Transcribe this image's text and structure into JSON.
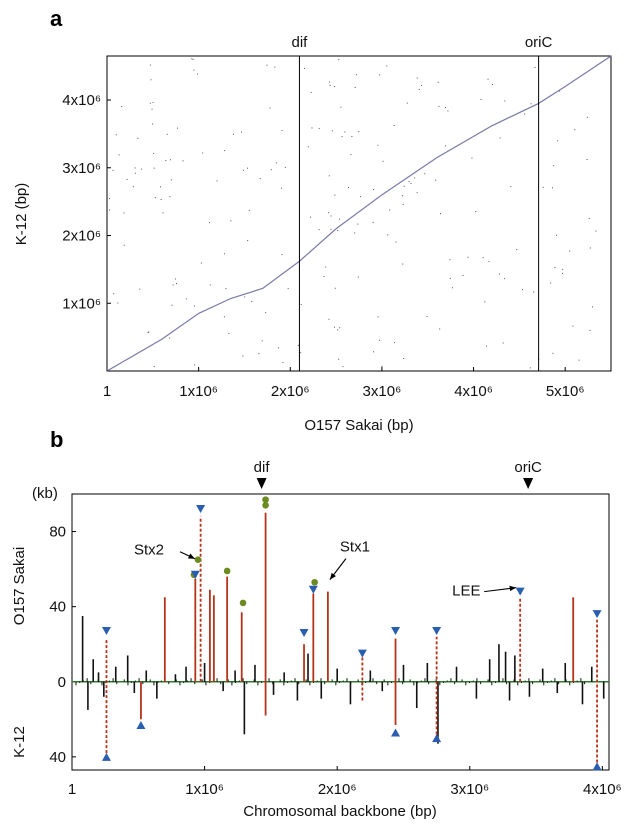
{
  "chart_data": [
    {
      "panel": "a",
      "type": "scatter",
      "xlabel": "O157 Sakai (bp)",
      "ylabel": "K-12 (bp)",
      "xlim": [
        0,
        5500000
      ],
      "ylim": [
        0,
        4650000
      ],
      "x_ticks": [
        {
          "value": 0,
          "label": "1"
        },
        {
          "value": 1000000,
          "label": "1x10⁶"
        },
        {
          "value": 2000000,
          "label": "2x10⁶"
        },
        {
          "value": 3000000,
          "label": "3x10⁶"
        },
        {
          "value": 4000000,
          "label": "4x10⁶"
        },
        {
          "value": 5000000,
          "label": "5x10⁶"
        }
      ],
      "y_ticks": [
        {
          "value": 1000000,
          "label": "1x10⁶"
        },
        {
          "value": 2000000,
          "label": "2x10⁶"
        },
        {
          "value": 3000000,
          "label": "3x10⁶"
        },
        {
          "value": 4000000,
          "label": "4x10⁶"
        }
      ],
      "markers": [
        {
          "label": "dif",
          "x": 2100000
        },
        {
          "label": "oriC",
          "x": 4710000
        }
      ],
      "diagonal": [
        [
          0,
          0
        ],
        [
          600000,
          470000
        ],
        [
          1000000,
          850000
        ],
        [
          1350000,
          1070000
        ],
        [
          1700000,
          1220000
        ],
        [
          2100000,
          1620000
        ],
        [
          2500000,
          2100000
        ],
        [
          3000000,
          2600000
        ],
        [
          3600000,
          3150000
        ],
        [
          4200000,
          3620000
        ],
        [
          4710000,
          3950000
        ],
        [
          5000000,
          4200000
        ],
        [
          5500000,
          4650000
        ]
      ],
      "grid": false,
      "color": "#7a7aa8"
    },
    {
      "panel": "b",
      "type": "bar",
      "xlabel": "Chromosomal backbone (bp)",
      "ylabel_top": "O157 Sakai",
      "ylabel_bottom": "K-12",
      "y_unit": "(kb)",
      "xlim": [
        0,
        4050000
      ],
      "ylim": [
        -47,
        100
      ],
      "x_ticks": [
        {
          "value": 0,
          "label": "1"
        },
        {
          "value": 1000000,
          "label": "1x10⁶"
        },
        {
          "value": 2000000,
          "label": "2x10⁶"
        },
        {
          "value": 3000000,
          "label": "3x10⁶"
        },
        {
          "value": 4000000,
          "label": "4x10⁶"
        }
      ],
      "y_ticks_top": [
        {
          "value": 40,
          "label": "40"
        },
        {
          "value": 80,
          "label": "80"
        }
      ],
      "y_ticks_bottom": [
        {
          "value": -40,
          "label": "40"
        }
      ],
      "zero_label": "0",
      "markers": [
        {
          "label": "dif",
          "x": 1430000
        },
        {
          "label": "oriC",
          "x": 3440000
        }
      ],
      "red_bars": [
        {
          "x": 700000,
          "top": 45,
          "bottom": 0
        },
        {
          "x": 930000,
          "top": 55,
          "bottom": 0
        },
        {
          "x": 1040000,
          "top": 49,
          "bottom": 0
        },
        {
          "x": 1070000,
          "top": 46,
          "bottom": 0
        },
        {
          "x": 1170000,
          "top": 56,
          "bottom": 0
        },
        {
          "x": 1280000,
          "top": 37,
          "bottom": 0
        },
        {
          "x": 1460000,
          "top": 90,
          "bottom": -18
        },
        {
          "x": 1750000,
          "top": 20,
          "bottom": 0
        },
        {
          "x": 1820000,
          "top": 47,
          "bottom": 0
        },
        {
          "x": 1930000,
          "top": 48,
          "bottom": 0
        },
        {
          "x": 2440000,
          "top": 23,
          "bottom": -23
        },
        {
          "x": 3780000,
          "top": 45,
          "bottom": 0
        },
        {
          "x": 520000,
          "top": 0,
          "bottom": -20
        }
      ],
      "red_dashed": [
        {
          "x": 260000,
          "top": 23,
          "bottom": -38
        },
        {
          "x": 970000,
          "top": 88,
          "bottom": 0
        },
        {
          "x": 2190000,
          "top": 13,
          "bottom": -10
        },
        {
          "x": 2750000,
          "top": 24,
          "bottom": -28
        },
        {
          "x": 3380000,
          "top": 45,
          "bottom": 0
        },
        {
          "x": 3960000,
          "top": 33,
          "bottom": -43
        }
      ],
      "black_bars": [
        {
          "x": 80000,
          "v": 35
        },
        {
          "x": 120000,
          "v": -15
        },
        {
          "x": 160000,
          "v": 12
        },
        {
          "x": 200000,
          "v": 5
        },
        {
          "x": 240000,
          "v": -8
        },
        {
          "x": 330000,
          "v": 8
        },
        {
          "x": 420000,
          "v": 14
        },
        {
          "x": 470000,
          "v": -6
        },
        {
          "x": 560000,
          "v": 6
        },
        {
          "x": 640000,
          "v": -9
        },
        {
          "x": 780000,
          "v": 4
        },
        {
          "x": 860000,
          "v": 8
        },
        {
          "x": 1000000,
          "v": 10
        },
        {
          "x": 1140000,
          "v": -5
        },
        {
          "x": 1230000,
          "v": 6
        },
        {
          "x": 1300000,
          "v": -28
        },
        {
          "x": 1380000,
          "v": 9
        },
        {
          "x": 1520000,
          "v": -7
        },
        {
          "x": 1600000,
          "v": 5
        },
        {
          "x": 1700000,
          "v": -10
        },
        {
          "x": 1780000,
          "v": 15
        },
        {
          "x": 1880000,
          "v": -9
        },
        {
          "x": 2000000,
          "v": 7
        },
        {
          "x": 2100000,
          "v": -12
        },
        {
          "x": 2250000,
          "v": 6
        },
        {
          "x": 2340000,
          "v": -5
        },
        {
          "x": 2500000,
          "v": 9
        },
        {
          "x": 2600000,
          "v": -14
        },
        {
          "x": 2680000,
          "v": 10
        },
        {
          "x": 2760000,
          "v": -33
        },
        {
          "x": 2900000,
          "v": 8
        },
        {
          "x": 3050000,
          "v": -9
        },
        {
          "x": 3150000,
          "v": 12
        },
        {
          "x": 3220000,
          "v": 20
        },
        {
          "x": 3270000,
          "v": 16
        },
        {
          "x": 3300000,
          "v": -10
        },
        {
          "x": 3340000,
          "v": 14
        },
        {
          "x": 3450000,
          "v": -8
        },
        {
          "x": 3550000,
          "v": 7
        },
        {
          "x": 3660000,
          "v": -6
        },
        {
          "x": 3720000,
          "v": 10
        },
        {
          "x": 3850000,
          "v": -12
        },
        {
          "x": 3920000,
          "v": 8
        },
        {
          "x": 4010000,
          "v": -9
        }
      ],
      "green_dots": [
        {
          "x": 920000,
          "y": 57
        },
        {
          "x": 950000,
          "y": 65
        },
        {
          "x": 1170000,
          "y": 59
        },
        {
          "x": 1290000,
          "y": 42
        },
        {
          "x": 1460000,
          "y": 94
        },
        {
          "x": 1460000,
          "y": 97
        },
        {
          "x": 1830000,
          "y": 53
        }
      ],
      "blue_triangles_down": [
        {
          "x": 260000,
          "y": 27
        },
        {
          "x": 930000,
          "y": 57
        },
        {
          "x": 970000,
          "y": 92
        },
        {
          "x": 1750000,
          "y": 26
        },
        {
          "x": 1820000,
          "y": 49
        },
        {
          "x": 2190000,
          "y": 15
        },
        {
          "x": 2440000,
          "y": 27
        },
        {
          "x": 2750000,
          "y": 27
        },
        {
          "x": 3380000,
          "y": 48
        },
        {
          "x": 3960000,
          "y": 36
        }
      ],
      "blue_triangles_up": [
        {
          "x": 260000,
          "y": -40
        },
        {
          "x": 520000,
          "y": -23
        },
        {
          "x": 2440000,
          "y": -27
        },
        {
          "x": 2750000,
          "y": -30
        },
        {
          "x": 3960000,
          "y": -45
        }
      ],
      "annotations": [
        {
          "label": "Stx2",
          "x": 950000,
          "y": 65
        },
        {
          "label": "Stx1",
          "x": 1930000,
          "y": 48
        },
        {
          "label": "LEE",
          "x": 3380000,
          "y": 48
        }
      ],
      "colors": {
        "red": "#b5341c",
        "black": "#111111",
        "green": "#6b8a1f",
        "blue": "#2a5fb0",
        "zero_line": "#2f7a2f"
      }
    }
  ]
}
